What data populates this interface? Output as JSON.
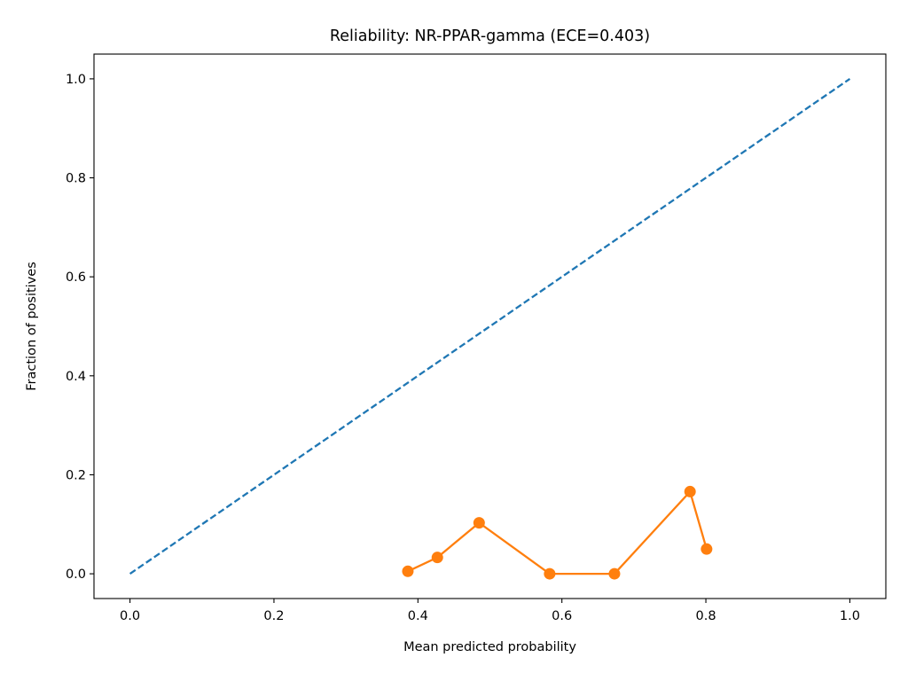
{
  "chart_data": {
    "type": "line",
    "title": "Reliability: NR-PPAR-gamma (ECE=0.403)",
    "xlabel": "Mean predicted probability",
    "ylabel": "Fraction of positives",
    "xlim": [
      -0.05,
      1.05
    ],
    "ylim": [
      -0.05,
      1.05
    ],
    "xticks": [
      "0.0",
      "0.2",
      "0.4",
      "0.6",
      "0.8",
      "1.0"
    ],
    "yticks": [
      "0.0",
      "0.2",
      "0.4",
      "0.6",
      "0.8",
      "1.0"
    ],
    "grid": false,
    "series": [
      {
        "style": "dashed",
        "color": "#1f77b4",
        "x": [
          0.0,
          1.0
        ],
        "y": [
          0.0,
          1.0
        ]
      },
      {
        "style": "solid-markers",
        "color": "#ff7f0e",
        "x": [
          0.386,
          0.427,
          0.485,
          0.583,
          0.673,
          0.778,
          0.801
        ],
        "y": [
          0.005,
          0.033,
          0.103,
          0.0,
          0.0,
          0.166,
          0.05
        ]
      }
    ]
  }
}
